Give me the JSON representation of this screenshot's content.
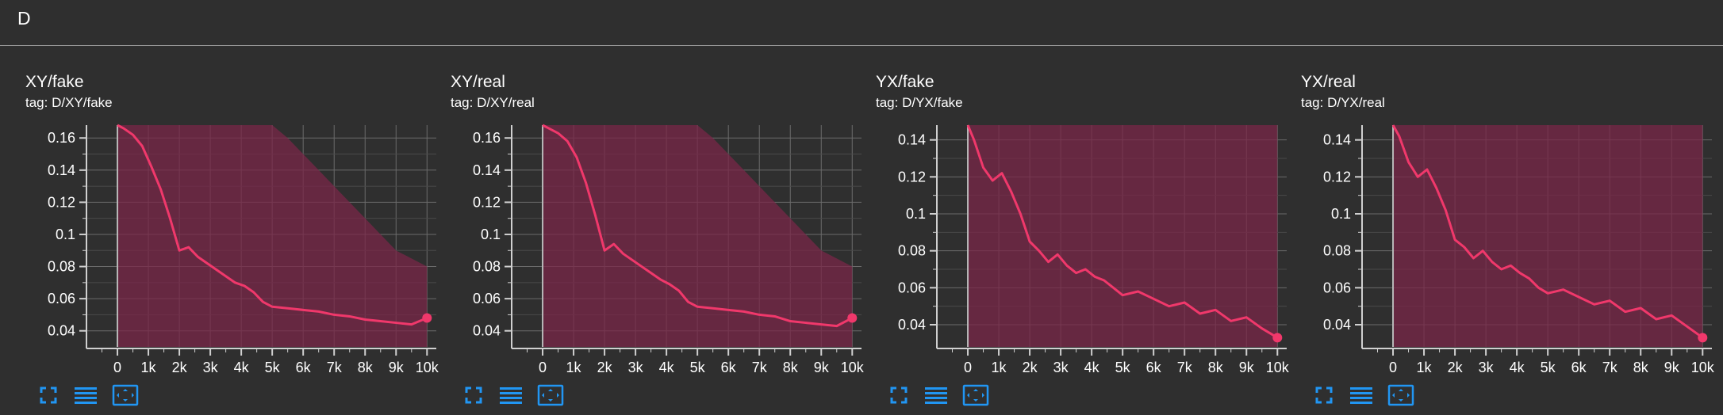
{
  "group": {
    "title": "D"
  },
  "colors": {
    "background": "#2f2f2f",
    "series": "#f0386b",
    "band": "#7a2748",
    "grid": "#6b6b6b",
    "toolbar_icon": "#2196f3"
  },
  "toolbar_icons": [
    "fullscreen-icon",
    "toggle-log-scale-icon",
    "fit-domain-icon"
  ],
  "cards": [
    {
      "title": "XY/fake",
      "tag": "tag: D/XY/fake",
      "chart_data": {
        "type": "line",
        "title": "XY/fake",
        "xlim": [
          -1000,
          10300
        ],
        "ylim": [
          0.03,
          0.168
        ],
        "x_ticks": [
          0,
          1000,
          2000,
          3000,
          4000,
          5000,
          6000,
          7000,
          8000,
          9000,
          10000
        ],
        "x_tick_labels": [
          "0",
          "1k",
          "2k",
          "3k",
          "4k",
          "5k",
          "6k",
          "7k",
          "8k",
          "9k",
          "10k"
        ],
        "y_ticks": [
          0.04,
          0.06,
          0.08,
          0.1,
          0.12,
          0.14,
          0.16
        ],
        "y_tick_labels": [
          "0.04",
          "0.06",
          "0.08",
          "0.1",
          "0.12",
          "0.14",
          "0.16"
        ],
        "grid": true,
        "series": [
          {
            "x": [
              0,
              200,
              500,
              800,
              1100,
              1400,
              1700,
              2000,
              2300,
              2600,
              2900,
              3200,
              3500,
              3800,
              4100,
              4400,
              4700,
              5000,
              5500,
              6000,
              6500,
              7000,
              7500,
              8000,
              8500,
              9000,
              9500,
              10000
            ],
            "y": [
              0.168,
              0.166,
              0.162,
              0.155,
              0.142,
              0.128,
              0.11,
              0.09,
              0.092,
              0.086,
              0.082,
              0.078,
              0.074,
              0.07,
              0.068,
              0.064,
              0.058,
              0.055,
              0.054,
              0.053,
              0.052,
              0.05,
              0.049,
              0.047,
              0.046,
              0.045,
              0.044,
              0.048
            ],
            "band_upper": [
              0.168,
              0.168,
              0.168,
              0.168,
              0.168,
              0.168,
              0.168,
              0.168,
              0.168,
              0.168,
              0.168,
              0.168,
              0.168,
              0.168,
              0.168,
              0.168,
              0.168,
              0.168,
              0.16,
              0.15,
              0.14,
              0.13,
              0.12,
              0.11,
              0.1,
              0.09,
              0.085,
              0.08
            ],
            "band_lower": [
              0.03,
              0.03,
              0.03,
              0.03,
              0.03,
              0.03,
              0.03,
              0.03,
              0.03,
              0.03,
              0.03,
              0.03,
              0.03,
              0.03,
              0.03,
              0.03,
              0.03,
              0.03,
              0.03,
              0.03,
              0.03,
              0.03,
              0.03,
              0.03,
              0.03,
              0.03,
              0.03,
              0.03
            ]
          }
        ]
      }
    },
    {
      "title": "XY/real",
      "tag": "tag: D/XY/real",
      "chart_data": {
        "type": "line",
        "title": "XY/real",
        "xlim": [
          -1000,
          10300
        ],
        "ylim": [
          0.03,
          0.168
        ],
        "x_ticks": [
          0,
          1000,
          2000,
          3000,
          4000,
          5000,
          6000,
          7000,
          8000,
          9000,
          10000
        ],
        "x_tick_labels": [
          "0",
          "1k",
          "2k",
          "3k",
          "4k",
          "5k",
          "6k",
          "7k",
          "8k",
          "9k",
          "10k"
        ],
        "y_ticks": [
          0.04,
          0.06,
          0.08,
          0.1,
          0.12,
          0.14,
          0.16
        ],
        "y_tick_labels": [
          "0.04",
          "0.06",
          "0.08",
          "0.1",
          "0.12",
          "0.14",
          "0.16"
        ],
        "grid": true,
        "series": [
          {
            "x": [
              0,
              200,
              500,
              800,
              1100,
              1400,
              1700,
              2000,
              2300,
              2600,
              2900,
              3200,
              3500,
              3800,
              4100,
              4400,
              4700,
              5000,
              5500,
              6000,
              6500,
              7000,
              7500,
              8000,
              8500,
              9000,
              9500,
              10000
            ],
            "y": [
              0.168,
              0.166,
              0.163,
              0.158,
              0.148,
              0.132,
              0.112,
              0.09,
              0.094,
              0.088,
              0.084,
              0.08,
              0.076,
              0.072,
              0.069,
              0.065,
              0.058,
              0.055,
              0.054,
              0.053,
              0.052,
              0.05,
              0.049,
              0.046,
              0.045,
              0.044,
              0.043,
              0.048
            ],
            "band_upper": [
              0.168,
              0.168,
              0.168,
              0.168,
              0.168,
              0.168,
              0.168,
              0.168,
              0.168,
              0.168,
              0.168,
              0.168,
              0.168,
              0.168,
              0.168,
              0.168,
              0.168,
              0.168,
              0.16,
              0.15,
              0.14,
              0.13,
              0.12,
              0.11,
              0.1,
              0.09,
              0.085,
              0.08
            ],
            "band_lower": [
              0.03,
              0.03,
              0.03,
              0.03,
              0.03,
              0.03,
              0.03,
              0.03,
              0.03,
              0.03,
              0.03,
              0.03,
              0.03,
              0.03,
              0.03,
              0.03,
              0.03,
              0.03,
              0.03,
              0.03,
              0.03,
              0.03,
              0.03,
              0.03,
              0.03,
              0.03,
              0.03,
              0.03
            ]
          }
        ]
      }
    },
    {
      "title": "YX/fake",
      "tag": "tag: D/YX/fake",
      "chart_data": {
        "type": "line",
        "title": "YX/fake",
        "xlim": [
          -1000,
          10300
        ],
        "ylim": [
          0.028,
          0.148
        ],
        "x_ticks": [
          0,
          1000,
          2000,
          3000,
          4000,
          5000,
          6000,
          7000,
          8000,
          9000,
          10000
        ],
        "x_tick_labels": [
          "0",
          "1k",
          "2k",
          "3k",
          "4k",
          "5k",
          "6k",
          "7k",
          "8k",
          "9k",
          "10k"
        ],
        "y_ticks": [
          0.04,
          0.06,
          0.08,
          0.1,
          0.12,
          0.14
        ],
        "y_tick_labels": [
          "0.04",
          "0.06",
          "0.08",
          "0.1",
          "0.12",
          "0.14"
        ],
        "grid": true,
        "series": [
          {
            "x": [
              0,
              200,
              500,
              800,
              1100,
              1400,
              1700,
              2000,
              2300,
              2600,
              2900,
              3200,
              3500,
              3800,
              4100,
              4400,
              4700,
              5000,
              5500,
              6000,
              6500,
              7000,
              7500,
              8000,
              8500,
              9000,
              9500,
              10000
            ],
            "y": [
              0.148,
              0.14,
              0.125,
              0.118,
              0.122,
              0.112,
              0.1,
              0.085,
              0.08,
              0.074,
              0.078,
              0.072,
              0.068,
              0.07,
              0.066,
              0.064,
              0.06,
              0.056,
              0.058,
              0.054,
              0.05,
              0.052,
              0.046,
              0.048,
              0.042,
              0.044,
              0.038,
              0.033
            ],
            "band_upper": [
              0.148,
              0.148,
              0.148,
              0.148,
              0.148,
              0.148,
              0.148,
              0.148,
              0.148,
              0.148,
              0.148,
              0.148,
              0.148,
              0.148,
              0.148,
              0.148,
              0.148,
              0.148,
              0.148,
              0.148,
              0.148,
              0.148,
              0.148,
              0.148,
              0.148,
              0.148,
              0.148,
              0.148
            ],
            "band_lower": [
              0.028,
              0.028,
              0.028,
              0.028,
              0.028,
              0.028,
              0.028,
              0.028,
              0.028,
              0.028,
              0.028,
              0.028,
              0.028,
              0.028,
              0.028,
              0.028,
              0.028,
              0.028,
              0.028,
              0.028,
              0.028,
              0.028,
              0.028,
              0.028,
              0.028,
              0.028,
              0.028,
              0.028
            ]
          }
        ]
      }
    },
    {
      "title": "YX/real",
      "tag": "tag: D/YX/real",
      "chart_data": {
        "type": "line",
        "title": "YX/real",
        "xlim": [
          -1000,
          10300
        ],
        "ylim": [
          0.028,
          0.148
        ],
        "x_ticks": [
          0,
          1000,
          2000,
          3000,
          4000,
          5000,
          6000,
          7000,
          8000,
          9000,
          10000
        ],
        "x_tick_labels": [
          "0",
          "1k",
          "2k",
          "3k",
          "4k",
          "5k",
          "6k",
          "7k",
          "8k",
          "9k",
          "10k"
        ],
        "y_ticks": [
          0.04,
          0.06,
          0.08,
          0.1,
          0.12,
          0.14
        ],
        "y_tick_labels": [
          "0.04",
          "0.06",
          "0.08",
          "0.1",
          "0.12",
          "0.14"
        ],
        "grid": true,
        "series": [
          {
            "x": [
              0,
              200,
              500,
              800,
              1100,
              1400,
              1700,
              2000,
              2300,
              2600,
              2900,
              3200,
              3500,
              3800,
              4100,
              4400,
              4700,
              5000,
              5500,
              6000,
              6500,
              7000,
              7500,
              8000,
              8500,
              9000,
              9500,
              10000
            ],
            "y": [
              0.148,
              0.142,
              0.128,
              0.12,
              0.124,
              0.114,
              0.102,
              0.086,
              0.082,
              0.076,
              0.08,
              0.074,
              0.07,
              0.072,
              0.068,
              0.065,
              0.06,
              0.057,
              0.059,
              0.055,
              0.051,
              0.053,
              0.047,
              0.049,
              0.043,
              0.045,
              0.039,
              0.033
            ],
            "band_upper": [
              0.148,
              0.148,
              0.148,
              0.148,
              0.148,
              0.148,
              0.148,
              0.148,
              0.148,
              0.148,
              0.148,
              0.148,
              0.148,
              0.148,
              0.148,
              0.148,
              0.148,
              0.148,
              0.148,
              0.148,
              0.148,
              0.148,
              0.148,
              0.148,
              0.148,
              0.148,
              0.148,
              0.148
            ],
            "band_lower": [
              0.028,
              0.028,
              0.028,
              0.028,
              0.028,
              0.028,
              0.028,
              0.028,
              0.028,
              0.028,
              0.028,
              0.028,
              0.028,
              0.028,
              0.028,
              0.028,
              0.028,
              0.028,
              0.028,
              0.028,
              0.028,
              0.028,
              0.028,
              0.028,
              0.028,
              0.028,
              0.028,
              0.028
            ]
          }
        ]
      }
    }
  ]
}
